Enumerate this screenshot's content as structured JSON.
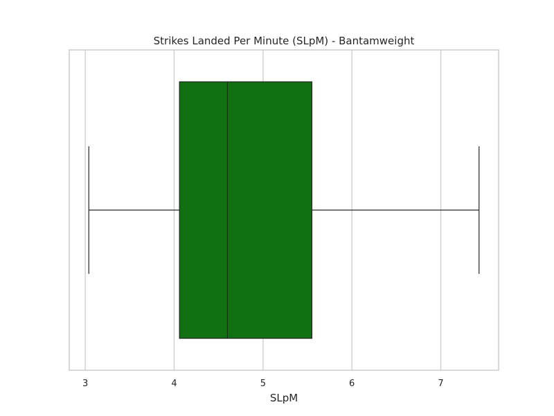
{
  "chart_data": {
    "type": "boxplot",
    "title": "Strikes Landed Per Minute (SLpM) - Bantamweight",
    "xlabel": "SLpM",
    "ylabel": "",
    "xlim": [
      2.82,
      7.65
    ],
    "xticks": [
      3,
      4,
      5,
      6,
      7
    ],
    "xtick_labels": [
      "3",
      "4",
      "5",
      "6",
      "7"
    ],
    "grid": true,
    "orientation": "horizontal",
    "series": [
      {
        "whisker_low": 3.04,
        "q1": 4.06,
        "median": 4.6,
        "q3": 5.55,
        "whisker_high": 7.43
      }
    ],
    "colors": {
      "box_fill": "#117011",
      "box_edge": "#262626",
      "grid": "#cccccc",
      "frame": "#cccccc",
      "text": "#262626"
    }
  }
}
